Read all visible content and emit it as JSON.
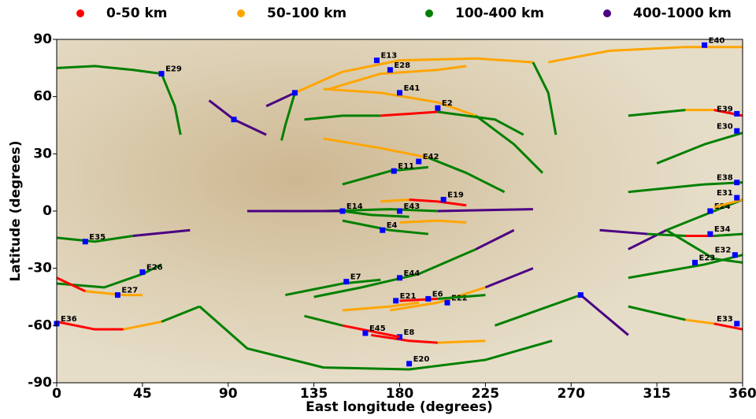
{
  "chart_data": {
    "type": "map-tracks",
    "xlabel": "East longitude (degrees)",
    "ylabel": "Latitude (degrees)",
    "xlim": [
      0,
      360
    ],
    "ylim": [
      -90,
      90
    ],
    "xticks": [
      0,
      45,
      90,
      135,
      180,
      225,
      270,
      315,
      360
    ],
    "yticks": [
      -90,
      -60,
      -30,
      0,
      30,
      60,
      90
    ],
    "legend": [
      {
        "label": "0-50 km",
        "color": "#ff0000"
      },
      {
        "label": "50-100 km",
        "color": "#ffa500"
      },
      {
        "label": "100-400 km",
        "color": "#008000"
      },
      {
        "label": "400-1000 km",
        "color": "#4b0082"
      }
    ],
    "ca_color": "#0000ff",
    "tracks": [
      {
        "name": "E40",
        "ca": [
          340,
          87
        ],
        "segments": [
          {
            "color": "#ffa500",
            "x": [
              258,
              290,
              330,
              360
            ],
            "y": [
              78,
              84,
              86,
              86
            ]
          }
        ]
      },
      {
        "name": "E13",
        "ca": [
          168,
          79
        ],
        "segments": [
          {
            "color": "#ffa500",
            "x": [
              125,
              150,
              180,
              220,
              250
            ],
            "y": [
              62,
              73,
              79,
              80,
              78
            ]
          },
          {
            "color": "#008000",
            "x": [
              250,
              258,
              262
            ],
            "y": [
              78,
              62,
              40
            ]
          }
        ]
      },
      {
        "name": "E28",
        "ca": [
          175,
          74
        ],
        "segments": [
          {
            "color": "#ffa500",
            "x": [
              143,
              170,
              200,
              215
            ],
            "y": [
              64,
              72,
              74,
              76
            ]
          }
        ]
      },
      {
        "name": "E29",
        "ca": [
          55,
          72
        ],
        "segments": [
          {
            "color": "#008000",
            "x": [
              0,
              20,
              40,
              55,
              62,
              65
            ],
            "y": [
              75,
              76,
              74,
              72,
              55,
              40
            ]
          }
        ]
      },
      {
        "name": "E41",
        "ca": [
          180,
          62
        ],
        "segments": [
          {
            "color": "#ffa500",
            "x": [
              140,
              170,
              200,
              220
            ],
            "y": [
              64,
              62,
              57,
              50
            ]
          },
          {
            "color": "#008000",
            "x": [
              220,
              240,
              255
            ],
            "y": [
              50,
              35,
              20
            ]
          }
        ]
      },
      {
        "name": "E2",
        "ca": [
          200,
          54
        ],
        "segments": [
          {
            "color": "#008000",
            "x": [
              130,
              150,
              170
            ],
            "y": [
              48,
              50,
              50
            ]
          },
          {
            "color": "#ff0000",
            "x": [
              170,
              185,
              200
            ],
            "y": [
              50,
              51,
              52
            ]
          },
          {
            "color": "#008000",
            "x": [
              200,
              230,
              245
            ],
            "y": [
              52,
              48,
              40
            ]
          }
        ]
      },
      {
        "name": "E42",
        "ca": [
          190,
          26
        ],
        "segments": [
          {
            "color": "#ffa500",
            "x": [
              140,
              170,
              195
            ],
            "y": [
              38,
              33,
              28
            ]
          },
          {
            "color": "#008000",
            "x": [
              195,
              215,
              235
            ],
            "y": [
              28,
              20,
              10
            ]
          }
        ]
      },
      {
        "name": "E11",
        "ca": [
          177,
          21
        ],
        "segments": [
          {
            "color": "#008000",
            "x": [
              150,
              175,
              195
            ],
            "y": [
              14,
              21,
              23
            ]
          }
        ]
      },
      {
        "name": "E19",
        "ca": [
          203,
          6
        ],
        "segments": [
          {
            "color": "#ffa500",
            "x": [
              170,
              185
            ],
            "y": [
              5,
              6
            ]
          },
          {
            "color": "#ff0000",
            "x": [
              185,
              200,
              215
            ],
            "y": [
              6,
              5,
              3
            ]
          }
        ]
      },
      {
        "name": "E43",
        "ca": [
          180,
          0
        ],
        "segments": [
          {
            "color": "#008000",
            "x": [
              107,
              140,
              175,
              200
            ],
            "y": [
              0,
              0,
              1,
              0
            ]
          },
          {
            "color": "#4b0082",
            "x": [
              200,
              250
            ],
            "y": [
              0,
              1
            ]
          }
        ]
      },
      {
        "name": "E14",
        "ca": [
          150,
          0
        ],
        "segments": [
          {
            "color": "#4b0082",
            "x": [
              100,
              150
            ],
            "y": [
              0,
              0
            ]
          },
          {
            "color": "#008000",
            "x": [
              150,
              165,
              185
            ],
            "y": [
              0,
              -2,
              -3
            ]
          }
        ]
      },
      {
        "name": "E4",
        "ca": [
          171,
          -10
        ],
        "segments": [
          {
            "color": "#008000",
            "x": [
              150,
              175,
              195
            ],
            "y": [
              -5,
              -10,
              -12
            ]
          },
          {
            "color": "#ffa500",
            "x": [
              180,
              200,
              215
            ],
            "y": [
              -6,
              -5,
              -6
            ]
          }
        ]
      },
      {
        "name": "E44",
        "ca": [
          180,
          -35
        ],
        "segments": [
          {
            "color": "#008000",
            "x": [
              135,
              160,
              190,
              220
            ],
            "y": [
              -45,
              -40,
              -33,
              -20
            ]
          },
          {
            "color": "#4b0082",
            "x": [
              220,
              240
            ],
            "y": [
              -20,
              -10
            ]
          }
        ]
      },
      {
        "name": "E7",
        "ca": [
          152,
          -37
        ],
        "segments": [
          {
            "color": "#008000",
            "x": [
              120,
              150,
              170
            ],
            "y": [
              -44,
              -38,
              -36
            ]
          }
        ]
      },
      {
        "name": "E22",
        "ca": [
          205,
          -48
        ],
        "segments": [
          {
            "color": "#ffa500",
            "x": [
              175,
              200,
              225
            ],
            "y": [
              -52,
              -48,
              -40
            ]
          },
          {
            "color": "#4b0082",
            "x": [
              225,
              250
            ],
            "y": [
              -40,
              -30
            ]
          }
        ]
      },
      {
        "name": "E6",
        "ca": [
          195,
          -46
        ],
        "segments": [
          {
            "color": "#ff0000",
            "x": [
              180,
              200
            ],
            "y": [
              -47,
              -46
            ]
          },
          {
            "color": "#008000",
            "x": [
              200,
              225
            ],
            "y": [
              -46,
              -44
            ]
          }
        ]
      },
      {
        "name": "E21",
        "ca": [
          178,
          -47
        ],
        "segments": [
          {
            "color": "#ffa500",
            "x": [
              150,
              175,
              190
            ],
            "y": [
              -52,
              -50,
              -48
            ]
          }
        ]
      },
      {
        "name": "E8",
        "ca": [
          180,
          -66
        ],
        "segments": [
          {
            "color": "#ff0000",
            "x": [
              165,
              185,
              200
            ],
            "y": [
              -65,
              -68,
              -69
            ]
          },
          {
            "color": "#ffa500",
            "x": [
              200,
              225
            ],
            "y": [
              -69,
              -68
            ]
          }
        ]
      },
      {
        "name": "E45",
        "ca": [
          162,
          -64
        ],
        "segments": [
          {
            "color": "#008000",
            "x": [
              130,
              150
            ],
            "y": [
              -55,
              -60
            ]
          },
          {
            "color": "#ff0000",
            "x": [
              150,
              170,
              180
            ],
            "y": [
              -60,
              -64,
              -66
            ]
          }
        ]
      },
      {
        "name": "E20",
        "ca": [
          185,
          -80
        ],
        "segments": [
          {
            "color": "#008000",
            "x": [
              75,
              100,
              140,
              185,
              225,
              260
            ],
            "y": [
              -50,
              -72,
              -82,
              -83,
              -78,
              -68
            ]
          }
        ]
      },
      {
        "name": "E35",
        "ca": [
          15,
          -16
        ],
        "segments": [
          {
            "color": "#008000",
            "x": [
              0,
              20,
              40
            ],
            "y": [
              -14,
              -16,
              -13
            ]
          },
          {
            "color": "#4b0082",
            "x": [
              40,
              70
            ],
            "y": [
              -13,
              -10
            ]
          }
        ]
      },
      {
        "name": "E26",
        "ca": [
          45,
          -32
        ],
        "segments": [
          {
            "color": "#008000",
            "x": [
              0,
              25,
              45,
              55
            ],
            "y": [
              -38,
              -40,
              -33,
              -28
            ]
          }
        ]
      },
      {
        "name": "E27",
        "ca": [
          32,
          -44
        ],
        "segments": [
          {
            "color": "#ff0000",
            "x": [
              0,
              15
            ],
            "y": [
              -35,
              -42
            ]
          },
          {
            "color": "#ffa500",
            "x": [
              15,
              35,
              45
            ],
            "y": [
              -42,
              -44,
              -44
            ]
          }
        ]
      },
      {
        "name": "E36",
        "ca": [
          0,
          -59
        ],
        "segments": [
          {
            "color": "#ff0000",
            "x": [
              0,
              20,
              35
            ],
            "y": [
              -58,
              -62,
              -62
            ]
          },
          {
            "color": "#ffa500",
            "x": [
              35,
              55
            ],
            "y": [
              -62,
              -58
            ]
          },
          {
            "color": "#008000",
            "x": [
              55,
              75
            ],
            "y": [
              -58,
              -50
            ]
          }
        ]
      },
      {
        "name": "E39",
        "ca": [
          357,
          51
        ],
        "segments": [
          {
            "color": "#008000",
            "x": [
              300,
              330
            ],
            "y": [
              50,
              53
            ]
          },
          {
            "color": "#ffa500",
            "x": [
              330,
              345
            ],
            "y": [
              53,
              53
            ]
          },
          {
            "color": "#ff0000",
            "x": [
              345,
              360
            ],
            "y": [
              53,
              50
            ]
          }
        ]
      },
      {
        "name": "E30",
        "ca": [
          357,
          42
        ],
        "segments": [
          {
            "color": "#008000",
            "x": [
              315,
              340,
              360
            ],
            "y": [
              25,
              35,
              41
            ]
          }
        ]
      },
      {
        "name": "E38",
        "ca": [
          357,
          15
        ],
        "segments": [
          {
            "color": "#008000",
            "x": [
              300,
              340,
              360
            ],
            "y": [
              10,
              14,
              15
            ]
          }
        ]
      },
      {
        "name": "E24",
        "ca": [
          343,
          0
        ],
        "segments": [
          {
            "color": "#4b0082",
            "x": [
              300,
              320
            ],
            "y": [
              -20,
              -10
            ]
          },
          {
            "color": "#008000",
            "x": [
              320,
              345,
              360
            ],
            "y": [
              -10,
              0,
              6
            ]
          }
        ]
      },
      {
        "name": "E31",
        "ca": [
          357,
          7
        ],
        "segments": [
          {
            "color": "#ffa500",
            "x": [
              345,
              360
            ],
            "y": [
              2,
              6
            ]
          }
        ]
      },
      {
        "name": "E34",
        "ca": [
          343,
          -12
        ],
        "segments": [
          {
            "color": "#4b0082",
            "x": [
              285,
              310
            ],
            "y": [
              -10,
              -12
            ]
          },
          {
            "color": "#008000",
            "x": [
              310,
              330
            ],
            "y": [
              -12,
              -13
            ]
          },
          {
            "color": "#ff0000",
            "x": [
              330,
              345
            ],
            "y": [
              -13,
              -13
            ]
          },
          {
            "color": "#008000",
            "x": [
              345,
              360
            ],
            "y": [
              -13,
              -12
            ]
          }
        ]
      },
      {
        "name": "E32",
        "ca": [
          356,
          -23
        ],
        "segments": [
          {
            "color": "#008000",
            "x": [
              300,
              340,
              360
            ],
            "y": [
              -35,
              -28,
              -23
            ]
          }
        ]
      },
      {
        "name": "E23",
        "ca": [
          335,
          -27
        ],
        "segments": [
          {
            "color": "#008000",
            "x": [
              320,
              345,
              360
            ],
            "y": [
              -10,
              -25,
              -27
            ]
          }
        ]
      },
      {
        "name": "E33",
        "ca": [
          357,
          -59
        ],
        "segments": [
          {
            "color": "#008000",
            "x": [
              300,
              330
            ],
            "y": [
              -50,
              -57
            ]
          },
          {
            "color": "#ffa500",
            "x": [
              330,
              345
            ],
            "y": [
              -57,
              -59
            ]
          },
          {
            "color": "#ff0000",
            "x": [
              345,
              360
            ],
            "y": [
              -59,
              -62
            ]
          }
        ]
      },
      {
        "ca": [
          93,
          48
        ],
        "segments": [
          {
            "color": "#4b0082",
            "x": [
              80,
              93,
              110
            ],
            "y": [
              58,
              48,
              40
            ]
          }
        ]
      },
      {
        "ca": [
          275,
          -44
        ],
        "segments": [
          {
            "color": "#008000",
            "x": [
              230,
              275
            ],
            "y": [
              -60,
              -44
            ]
          },
          {
            "color": "#4b0082",
            "x": [
              275,
              300
            ],
            "y": [
              -44,
              -65
            ]
          }
        ]
      },
      {
        "ca": [
          125,
          62
        ],
        "segments": [
          {
            "color": "#4b0082",
            "x": [
              110,
              125
            ],
            "y": [
              55,
              62
            ]
          },
          {
            "color": "#008000",
            "x": [
              125,
              120,
              118
            ],
            "y": [
              62,
              45,
              37
            ]
          }
        ]
      }
    ]
  }
}
